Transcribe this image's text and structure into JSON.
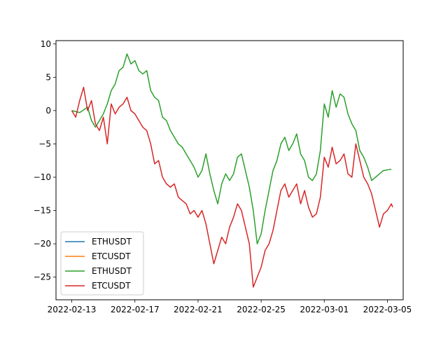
{
  "chart_data": {
    "type": "line",
    "title": "",
    "xlabel": "",
    "ylabel": "",
    "x_start": "2022-02-13",
    "x_end": "2022-03-05",
    "xlim": [
      "2022-02-12",
      "2022-03-06"
    ],
    "ylim": [
      -28.4,
      10.5
    ],
    "x_ticks": [
      "2022-02-13",
      "2022-02-17",
      "2022-02-21",
      "2022-02-25",
      "2022-03-01",
      "2022-03-05"
    ],
    "y_ticks": [
      10,
      5,
      0,
      -5,
      -10,
      -15,
      -20,
      -25
    ],
    "y_tick_labels": [
      "10",
      "5",
      "0",
      "−5",
      "−10",
      "−15",
      "−20",
      "−25"
    ],
    "legend_position": "lower-left",
    "grid": false,
    "series": [
      {
        "name": "ETHUSDT",
        "color": "#1f77b4",
        "points": []
      },
      {
        "name": "ETCUSDT",
        "color": "#ff7f0e",
        "points": []
      },
      {
        "name": "ETHUSDT",
        "color": "#2ca02c",
        "points": [
          [
            "2022-02-13",
            0.0
          ],
          [
            "2022-02-13 12:00",
            -0.3
          ],
          [
            "2022-02-14",
            0.5
          ],
          [
            "2022-02-14 06:00",
            -1.5
          ],
          [
            "2022-02-14 12:00",
            -2.5
          ],
          [
            "2022-02-14 18:00",
            -1.5
          ],
          [
            "2022-02-15",
            -0.5
          ],
          [
            "2022-02-15 06:00",
            1.0
          ],
          [
            "2022-02-15 12:00",
            3.0
          ],
          [
            "2022-02-15 18:00",
            4.0
          ],
          [
            "2022-02-16",
            6.0
          ],
          [
            "2022-02-16 06:00",
            6.5
          ],
          [
            "2022-02-16 12:00",
            8.5
          ],
          [
            "2022-02-16 18:00",
            7.0
          ],
          [
            "2022-02-17",
            7.5
          ],
          [
            "2022-02-17 06:00",
            6.0
          ],
          [
            "2022-02-17 12:00",
            5.5
          ],
          [
            "2022-02-17 18:00",
            6.0
          ],
          [
            "2022-02-18",
            3.0
          ],
          [
            "2022-02-18 06:00",
            2.0
          ],
          [
            "2022-02-18 12:00",
            1.5
          ],
          [
            "2022-02-18 18:00",
            -1.0
          ],
          [
            "2022-02-19",
            -1.5
          ],
          [
            "2022-02-19 06:00",
            -3.0
          ],
          [
            "2022-02-19 12:00",
            -4.0
          ],
          [
            "2022-02-19 18:00",
            -5.0
          ],
          [
            "2022-02-20",
            -5.5
          ],
          [
            "2022-02-20 06:00",
            -6.5
          ],
          [
            "2022-02-20 12:00",
            -7.5
          ],
          [
            "2022-02-20 18:00",
            -8.5
          ],
          [
            "2022-02-21",
            -10.0
          ],
          [
            "2022-02-21 06:00",
            -9.0
          ],
          [
            "2022-02-21 12:00",
            -6.5
          ],
          [
            "2022-02-21 18:00",
            -9.5
          ],
          [
            "2022-02-22",
            -12.0
          ],
          [
            "2022-02-22 06:00",
            -14.0
          ],
          [
            "2022-02-22 12:00",
            -11.0
          ],
          [
            "2022-02-22 18:00",
            -9.5
          ],
          [
            "2022-02-23",
            -10.5
          ],
          [
            "2022-02-23 06:00",
            -9.5
          ],
          [
            "2022-02-23 12:00",
            -7.0
          ],
          [
            "2022-02-23 18:00",
            -6.5
          ],
          [
            "2022-02-24",
            -9.0
          ],
          [
            "2022-02-24 06:00",
            -11.5
          ],
          [
            "2022-02-24 12:00",
            -15.0
          ],
          [
            "2022-02-24 18:00",
            -20.0
          ],
          [
            "2022-02-25",
            -18.5
          ],
          [
            "2022-02-25 06:00",
            -15.0
          ],
          [
            "2022-02-25 12:00",
            -12.0
          ],
          [
            "2022-02-25 18:00",
            -9.0
          ],
          [
            "2022-02-26",
            -7.5
          ],
          [
            "2022-02-26 06:00",
            -5.0
          ],
          [
            "2022-02-26 12:00",
            -4.0
          ],
          [
            "2022-02-26 18:00",
            -6.0
          ],
          [
            "2022-02-27",
            -5.0
          ],
          [
            "2022-02-27 06:00",
            -3.5
          ],
          [
            "2022-02-27 12:00",
            -6.5
          ],
          [
            "2022-02-27 18:00",
            -7.5
          ],
          [
            "2022-02-28",
            -10.0
          ],
          [
            "2022-02-28 06:00",
            -10.5
          ],
          [
            "2022-02-28 12:00",
            -9.5
          ],
          [
            "2022-02-28 18:00",
            -6.0
          ],
          [
            "2022-03-01",
            1.0
          ],
          [
            "2022-03-01 06:00",
            -1.0
          ],
          [
            "2022-03-01 12:00",
            3.0
          ],
          [
            "2022-03-01 18:00",
            0.5
          ],
          [
            "2022-03-02",
            2.5
          ],
          [
            "2022-03-02 06:00",
            2.0
          ],
          [
            "2022-03-02 12:00",
            -0.5
          ],
          [
            "2022-03-02 18:00",
            -2.0
          ],
          [
            "2022-03-03",
            -3.0
          ],
          [
            "2022-03-03 06:00",
            -6.0
          ],
          [
            "2022-03-03 12:00",
            -7.0
          ],
          [
            "2022-03-03 18:00",
            -8.5
          ],
          [
            "2022-03-04",
            -10.5
          ],
          [
            "2022-03-04 06:00",
            -10.0
          ],
          [
            "2022-03-04 12:00",
            -9.5
          ],
          [
            "2022-03-04 18:00",
            -9.0
          ],
          [
            "2022-03-05 06:00",
            -8.8
          ]
        ]
      },
      {
        "name": "ETCUSDT",
        "color": "#d62728",
        "points": [
          [
            "2022-02-13",
            0.0
          ],
          [
            "2022-02-13 06:00",
            -1.0
          ],
          [
            "2022-02-13 12:00",
            1.5
          ],
          [
            "2022-02-13 18:00",
            3.5
          ],
          [
            "2022-02-14",
            0.0
          ],
          [
            "2022-02-14 06:00",
            1.5
          ],
          [
            "2022-02-14 12:00",
            -2.0
          ],
          [
            "2022-02-14 18:00",
            -3.0
          ],
          [
            "2022-02-15",
            -1.0
          ],
          [
            "2022-02-15 06:00",
            -5.0
          ],
          [
            "2022-02-15 12:00",
            1.0
          ],
          [
            "2022-02-15 18:00",
            -0.5
          ],
          [
            "2022-02-16",
            0.5
          ],
          [
            "2022-02-16 06:00",
            1.0
          ],
          [
            "2022-02-16 12:00",
            2.0
          ],
          [
            "2022-02-16 18:00",
            0.0
          ],
          [
            "2022-02-17",
            -0.5
          ],
          [
            "2022-02-17 06:00",
            -1.5
          ],
          [
            "2022-02-17 12:00",
            -2.5
          ],
          [
            "2022-02-17 18:00",
            -3.0
          ],
          [
            "2022-02-18",
            -5.0
          ],
          [
            "2022-02-18 06:00",
            -8.0
          ],
          [
            "2022-02-18 12:00",
            -7.5
          ],
          [
            "2022-02-18 18:00",
            -10.0
          ],
          [
            "2022-02-19",
            -11.0
          ],
          [
            "2022-02-19 06:00",
            -11.5
          ],
          [
            "2022-02-19 12:00",
            -11.0
          ],
          [
            "2022-02-19 18:00",
            -13.0
          ],
          [
            "2022-02-20",
            -13.5
          ],
          [
            "2022-02-20 06:00",
            -14.0
          ],
          [
            "2022-02-20 12:00",
            -15.5
          ],
          [
            "2022-02-20 18:00",
            -15.0
          ],
          [
            "2022-02-21",
            -16.0
          ],
          [
            "2022-02-21 06:00",
            -15.0
          ],
          [
            "2022-02-21 12:00",
            -17.0
          ],
          [
            "2022-02-21 18:00",
            -20.0
          ],
          [
            "2022-02-22",
            -23.0
          ],
          [
            "2022-02-22 06:00",
            -21.0
          ],
          [
            "2022-02-22 12:00",
            -19.0
          ],
          [
            "2022-02-22 18:00",
            -20.0
          ],
          [
            "2022-02-23",
            -17.5
          ],
          [
            "2022-02-23 06:00",
            -16.0
          ],
          [
            "2022-02-23 12:00",
            -14.0
          ],
          [
            "2022-02-23 18:00",
            -15.0
          ],
          [
            "2022-02-24",
            -17.5
          ],
          [
            "2022-02-24 06:00",
            -20.0
          ],
          [
            "2022-02-24 12:00",
            -26.5
          ],
          [
            "2022-02-24 18:00",
            -25.0
          ],
          [
            "2022-02-25",
            -23.5
          ],
          [
            "2022-02-25 06:00",
            -21.0
          ],
          [
            "2022-02-25 12:00",
            -20.0
          ],
          [
            "2022-02-25 18:00",
            -18.0
          ],
          [
            "2022-02-26",
            -15.0
          ],
          [
            "2022-02-26 06:00",
            -12.0
          ],
          [
            "2022-02-26 12:00",
            -11.0
          ],
          [
            "2022-02-26 18:00",
            -13.0
          ],
          [
            "2022-02-27",
            -12.0
          ],
          [
            "2022-02-27 06:00",
            -11.0
          ],
          [
            "2022-02-27 12:00",
            -14.0
          ],
          [
            "2022-02-27 18:00",
            -12.0
          ],
          [
            "2022-02-28",
            -14.5
          ],
          [
            "2022-02-28 06:00",
            -16.0
          ],
          [
            "2022-02-28 12:00",
            -15.5
          ],
          [
            "2022-02-28 18:00",
            -13.0
          ],
          [
            "2022-03-01",
            -7.0
          ],
          [
            "2022-03-01 06:00",
            -8.5
          ],
          [
            "2022-03-01 12:00",
            -5.5
          ],
          [
            "2022-03-01 18:00",
            -8.0
          ],
          [
            "2022-03-02",
            -7.5
          ],
          [
            "2022-03-02 06:00",
            -6.5
          ],
          [
            "2022-03-02 12:00",
            -9.5
          ],
          [
            "2022-03-02 18:00",
            -10.0
          ],
          [
            "2022-03-03",
            -5.0
          ],
          [
            "2022-03-03 06:00",
            -7.5
          ],
          [
            "2022-03-03 12:00",
            -10.0
          ],
          [
            "2022-03-03 18:00",
            -11.0
          ],
          [
            "2022-03-04",
            -12.5
          ],
          [
            "2022-03-04 06:00",
            -15.0
          ],
          [
            "2022-03-04 12:00",
            -17.5
          ],
          [
            "2022-03-04 18:00",
            -15.5
          ],
          [
            "2022-03-05",
            -15.0
          ],
          [
            "2022-03-05 06:00",
            -14.0
          ],
          [
            "2022-03-05 08:00",
            -14.5
          ]
        ]
      }
    ]
  }
}
